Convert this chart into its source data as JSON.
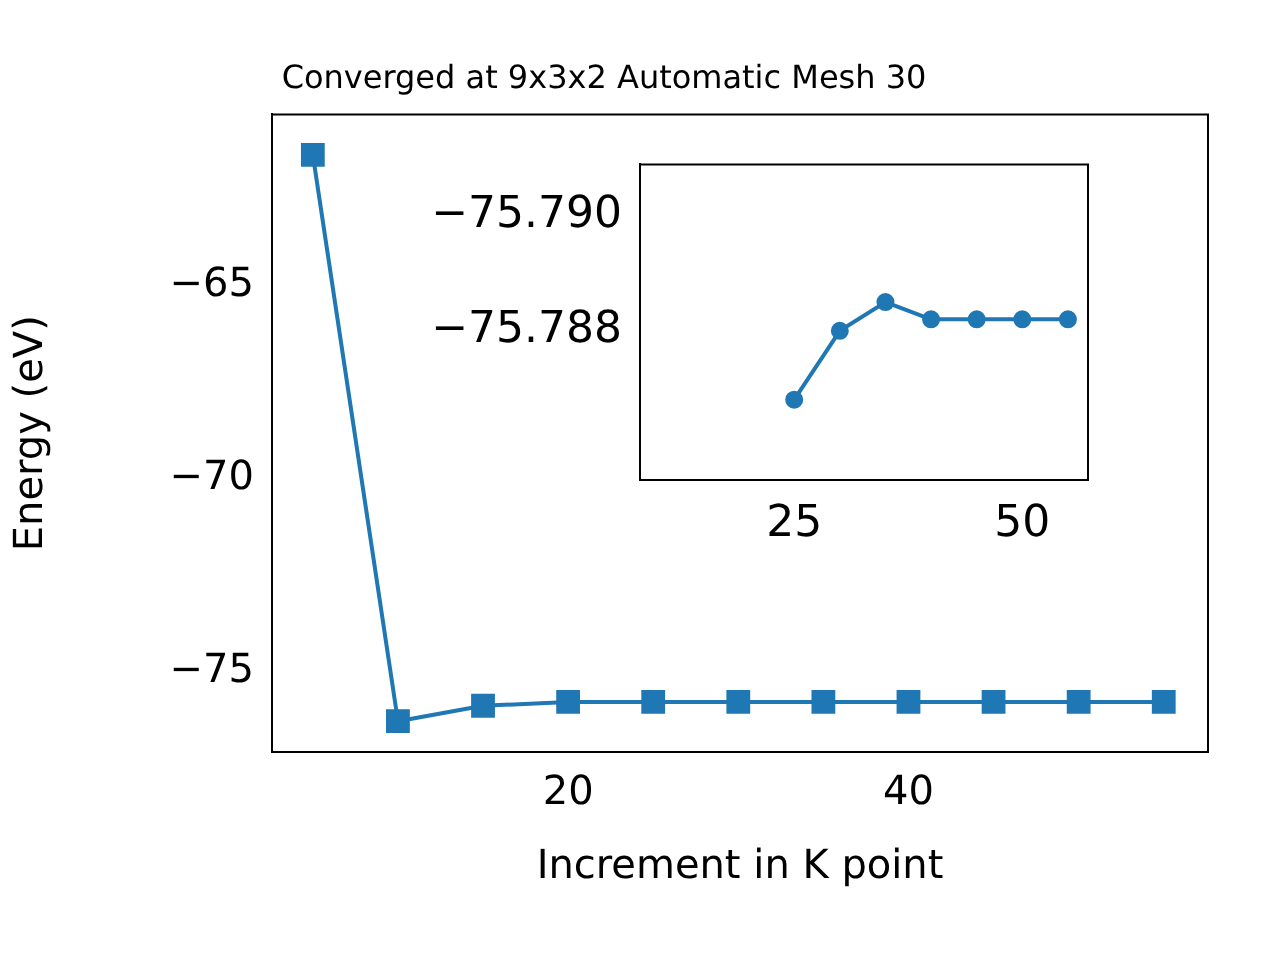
{
  "chart_data": [
    {
      "type": "line",
      "title": "Converged at 9x3x2 Automatic Mesh 30",
      "xlabel": "Increment in K point",
      "ylabel": "Energy (eV)",
      "series": [
        {
          "color": "#1f77b4",
          "x": [
            5,
            10,
            15,
            20,
            25,
            30,
            35,
            40,
            45,
            50,
            55
          ],
          "values": [
            -61.6,
            -76.3,
            -75.9,
            -75.8,
            -75.8,
            -75.8,
            -75.8,
            -75.8,
            -75.8,
            -75.8,
            -75.8
          ]
        }
      ],
      "xlim": [
        2.6,
        57.6
      ],
      "ylim": [
        -77.1,
        -60.55
      ],
      "xticks": [
        20,
        40
      ],
      "yticks": [
        {
          "value": -65,
          "label": "−65"
        },
        {
          "value": -70,
          "label": "−70"
        },
        {
          "value": -75,
          "label": "−75"
        }
      ],
      "marker": "square",
      "grid": false,
      "legend": false
    },
    {
      "type": "line",
      "series": [
        {
          "color": "#1f77b4",
          "x": [
            25,
            30,
            35,
            40,
            45,
            50,
            55
          ],
          "values": [
            -75.7868,
            -75.788,
            -75.7885,
            -75.7882,
            -75.7882,
            -75.7882,
            -75.7882
          ]
        }
      ],
      "xlim": [
        8.1,
        57.2
      ],
      "ylim": [
        -75.7854,
        -75.7909
      ],
      "xticks": [
        25,
        50
      ],
      "yticks": [
        {
          "value": -75.79,
          "label": "−75.790"
        },
        {
          "value": -75.788,
          "label": "−75.788"
        }
      ],
      "marker": "circle",
      "grid": false,
      "legend": false
    }
  ]
}
